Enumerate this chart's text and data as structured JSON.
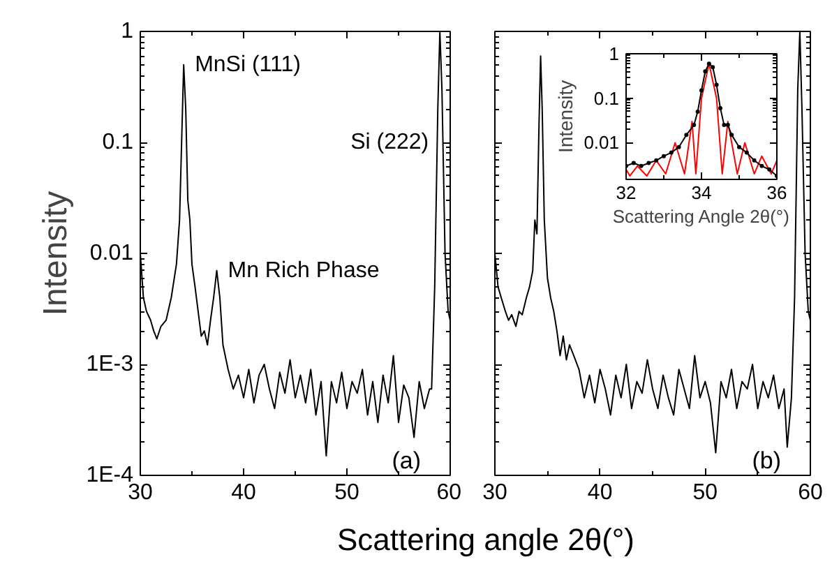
{
  "chart_data": [
    {
      "type": "line",
      "ylabel": "Intensity",
      "xlabel": "Scattering angle 2θ(°)",
      "log": "y",
      "xlim": [
        30,
        60
      ],
      "ylim": [
        0.0001,
        1
      ],
      "xticks": [
        30,
        40,
        50,
        60
      ],
      "yticks": [
        1,
        0.1,
        0.01,
        {
          "value": 0.001,
          "label": "1E-3"
        },
        {
          "value": 0.0001,
          "label": "1E-4"
        }
      ],
      "grid": false,
      "series": [
        {
          "color": "#000000",
          "x": [
            30,
            30.3,
            30.6,
            31,
            31.3,
            31.6,
            32,
            32.5,
            33,
            33.5,
            33.8,
            34.0,
            34.2,
            34.4,
            34.6,
            34.8,
            35,
            35.3,
            35.6,
            35.9,
            36.2,
            36.5,
            36.8,
            37.1,
            37.4,
            37.7,
            38,
            38.5,
            39,
            39.5,
            40,
            40.5,
            41,
            41.5,
            42,
            42.5,
            43,
            43.5,
            44,
            44.5,
            45,
            45.5,
            46,
            46.5,
            47,
            47.5,
            48,
            48.5,
            49,
            49.5,
            50,
            50.5,
            51,
            51.5,
            52,
            52.5,
            53,
            53.5,
            54,
            54.5,
            55,
            55.5,
            56,
            56.5,
            57,
            57.5,
            58,
            58.2,
            58.5,
            58.8,
            59,
            59.2,
            59.5,
            59.8,
            60
          ],
          "values": [
            0.01,
            0.004,
            0.003,
            0.0025,
            0.002,
            0.0017,
            0.0022,
            0.0025,
            0.004,
            0.008,
            0.02,
            0.1,
            0.5,
            0.2,
            0.03,
            0.02,
            0.008,
            0.005,
            0.003,
            0.0018,
            0.002,
            0.0015,
            0.0025,
            0.004,
            0.007,
            0.004,
            0.0015,
            0.0009,
            0.0006,
            0.0008,
            0.0005,
            0.0009,
            0.00045,
            0.0008,
            0.001,
            0.0006,
            0.0004,
            0.00085,
            0.00055,
            0.0011,
            0.0005,
            0.0008,
            0.00045,
            0.0009,
            0.00035,
            0.0007,
            0.00015,
            0.0007,
            0.00045,
            0.00085,
            0.0004,
            0.0007,
            0.00055,
            0.0009,
            0.00035,
            0.0007,
            0.0003,
            0.0008,
            0.00045,
            0.0012,
            0.0003,
            0.00065,
            0.0005,
            0.00022,
            0.0007,
            0.0004,
            0.0006,
            0.0006,
            0.005,
            0.2,
            1,
            0.3,
            0.01,
            0.003,
            0.0025
          ]
        }
      ],
      "annotations": [
        {
          "text": "MnSi (111)",
          "x": 34.2,
          "y": 0.5
        },
        {
          "text": "Mn Rich Phase",
          "x": 37.4,
          "y": 0.007
        },
        {
          "text": "Si (222)",
          "x": 59,
          "y": 0.1
        },
        "(a)"
      ]
    },
    {
      "type": "line",
      "log": "y",
      "xlim": [
        30,
        60
      ],
      "ylim": [
        0.0001,
        1
      ],
      "xticks": [
        30,
        40,
        50,
        60
      ],
      "yticks": [
        1,
        0.1,
        0.01,
        0.001,
        0.0001
      ],
      "tick_labels": "x",
      "grid": false,
      "series": [
        {
          "color": "#000000",
          "x": [
            30,
            30.3,
            30.6,
            31,
            31.3,
            31.6,
            32,
            32.3,
            32.6,
            33,
            33.3,
            33.6,
            33.8,
            34.0,
            34.2,
            34.35,
            34.5,
            34.7,
            35,
            35.3,
            35.6,
            35.9,
            36.2,
            36.5,
            36.8,
            37.1,
            37.5,
            38,
            38.5,
            39,
            39.5,
            40,
            40.5,
            41,
            41.5,
            42,
            42.5,
            43,
            43.5,
            44,
            44.5,
            45,
            45.5,
            46,
            46.5,
            47,
            47.5,
            48,
            48.5,
            49,
            49.5,
            50,
            50.5,
            51,
            51.5,
            52,
            52.5,
            53,
            53.5,
            54,
            54.5,
            55,
            55.5,
            56,
            56.5,
            57,
            57.5,
            57.8,
            58.2,
            58.5,
            58.8,
            59,
            59.2,
            59.5,
            59.8,
            60
          ],
          "values": [
            0.01,
            0.005,
            0.004,
            0.003,
            0.0025,
            0.0028,
            0.0022,
            0.003,
            0.0028,
            0.004,
            0.005,
            0.007,
            0.02,
            0.015,
            0.15,
            0.6,
            0.2,
            0.02,
            0.006,
            0.004,
            0.003,
            0.002,
            0.0012,
            0.0018,
            0.0011,
            0.0015,
            0.0012,
            0.0009,
            0.0005,
            0.0008,
            0.00045,
            0.0009,
            0.0006,
            0.00035,
            0.0008,
            0.0005,
            0.001,
            0.0004,
            0.0007,
            0.00055,
            0.0011,
            0.0006,
            0.0004,
            0.0008,
            0.0005,
            0.00035,
            0.0009,
            0.0006,
            0.0004,
            0.0012,
            0.0005,
            0.0007,
            0.00045,
            0.00016,
            0.0007,
            0.0005,
            0.0009,
            0.0004,
            0.0007,
            0.0006,
            0.001,
            0.0004,
            0.0007,
            0.0005,
            0.0008,
            0.0004,
            0.0006,
            0.00018,
            0.0005,
            0.004,
            0.3,
            1,
            0.2,
            0.01,
            0.003,
            0.0025
          ]
        }
      ],
      "annotations": [
        "(b)"
      ]
    },
    {
      "type": "line",
      "xlabel": "Scattering Angle 2θ(°)",
      "ylabel": "Intensity",
      "log": "y",
      "xlim": [
        32,
        36
      ],
      "ylim": [
        0.0015,
        1
      ],
      "xticks": [
        32,
        34,
        36
      ],
      "yticks": [
        0.01,
        0.1,
        1
      ],
      "grid": false,
      "series": [
        {
          "color": "#ff0000",
          "marker": "none",
          "x": [
            32,
            32.1,
            32.3,
            32.55,
            32.8,
            33.05,
            33.3,
            33.55,
            33.75,
            33.85,
            34.0,
            34.2,
            34.4,
            34.55,
            34.7,
            34.95,
            35.15,
            35.4,
            35.6,
            35.85,
            36
          ],
          "values": [
            0.0025,
            0.0018,
            0.003,
            0.0018,
            0.004,
            0.002,
            0.01,
            0.002,
            0.03,
            0.002,
            0.1,
            0.6,
            0.1,
            0.002,
            0.03,
            0.002,
            0.01,
            0.002,
            0.005,
            0.002,
            0.004
          ]
        },
        {
          "color": "#000000",
          "marker": "circle",
          "x": [
            32,
            32.2,
            32.4,
            32.6,
            32.8,
            33,
            33.2,
            33.4,
            33.6,
            33.8,
            33.9,
            34.0,
            34.1,
            34.2,
            34.3,
            34.4,
            34.5,
            34.6,
            34.7,
            34.8,
            35,
            35.2,
            35.4,
            35.6,
            35.8,
            36
          ],
          "values": [
            0.003,
            0.0035,
            0.003,
            0.0035,
            0.004,
            0.005,
            0.006,
            0.008,
            0.015,
            0.025,
            0.05,
            0.15,
            0.4,
            0.6,
            0.5,
            0.2,
            0.06,
            0.025,
            0.025,
            0.015,
            0.008,
            0.006,
            0.004,
            0.003,
            0.0025,
            0.0018
          ]
        }
      ]
    }
  ]
}
